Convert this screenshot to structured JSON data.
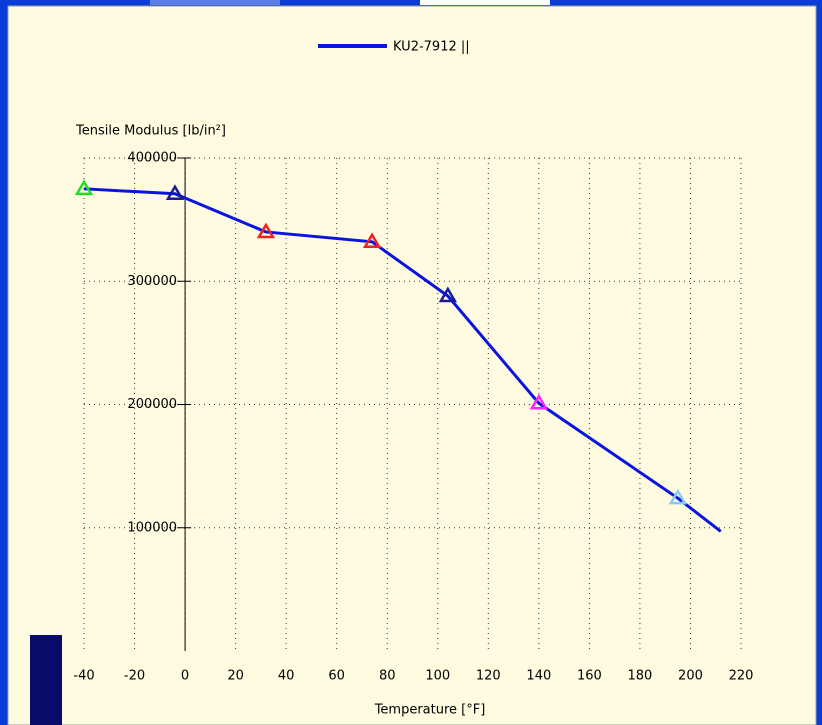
{
  "chart_data": {
    "type": "line",
    "legend": "KU2-7912 ||",
    "ylabel": "Tensile Modulus [lb/in²]",
    "xlabel": "Temperature [°F]",
    "series": [
      {
        "name": "KU2-7912 ||",
        "color": "#0a14e0",
        "x": [
          -40,
          -4,
          32,
          74,
          104,
          140,
          195,
          212
        ],
        "values": [
          375000,
          371000,
          340000,
          332000,
          288000,
          201000,
          124000,
          97000
        ],
        "marker_colors": [
          "#22dd22",
          "#1a1a9a",
          "#ee2222",
          "#ee2222",
          "#1a1a9a",
          "#ff22ff",
          "#88ccee",
          null
        ]
      }
    ],
    "xlim": [
      -40,
      220
    ],
    "xticks": [
      -40,
      -20,
      0,
      20,
      40,
      60,
      80,
      100,
      120,
      140,
      160,
      180,
      200,
      220
    ],
    "ylim": [
      0,
      400000
    ],
    "yticks": [
      100000,
      200000,
      300000,
      400000
    ],
    "grid": true
  }
}
